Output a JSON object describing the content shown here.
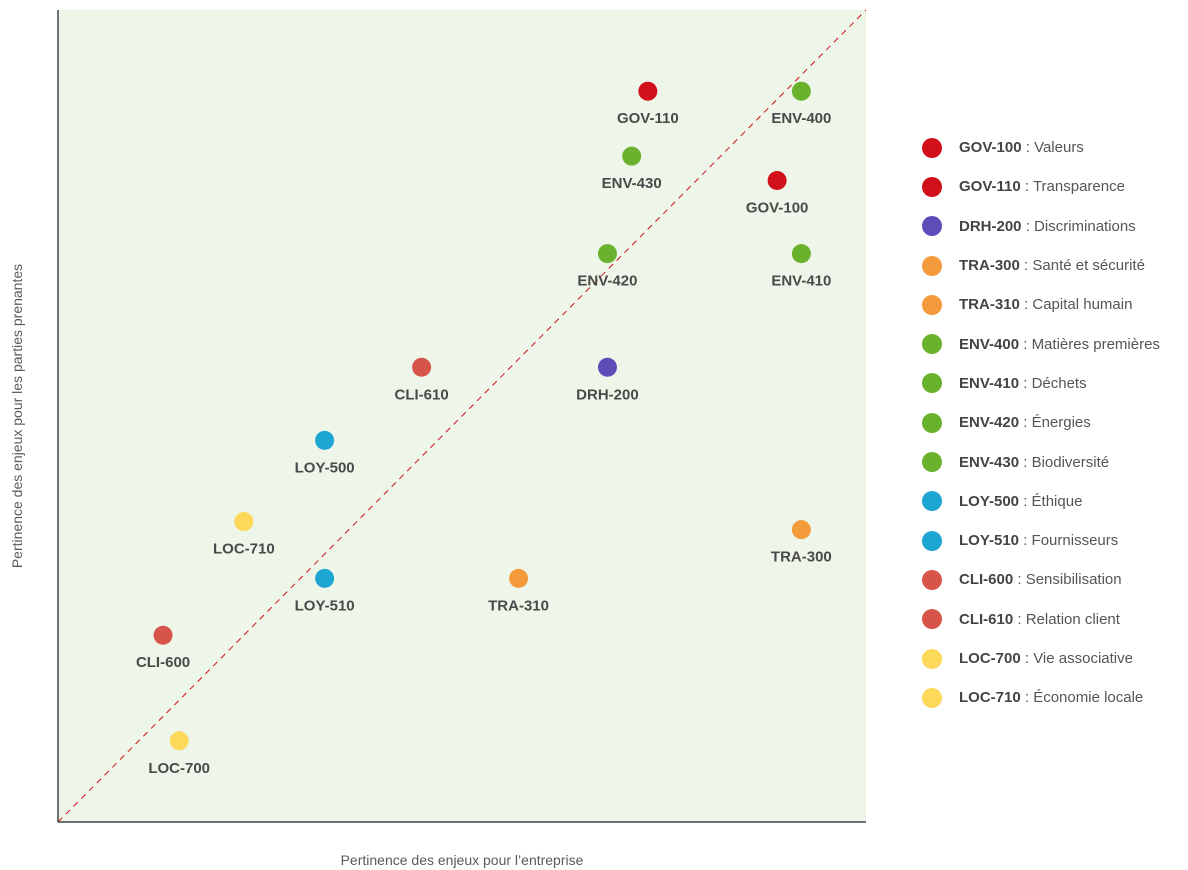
{
  "chart_data": {
    "type": "scatter",
    "xlabel": "Pertinence des enjeux pour l’entreprise",
    "ylabel": "Pertinence des enjeux pour les parties prenantes",
    "xlim": [
      0,
      10
    ],
    "ylim": [
      0,
      10
    ],
    "diagonal": true,
    "grid": false,
    "background": "#eef5e9",
    "legend_position": "right",
    "points": [
      {
        "label": "GOV-110",
        "x": 7.3,
        "y": 9.0,
        "color": "#d0101a"
      },
      {
        "label": "ENV-400",
        "x": 9.2,
        "y": 9.0,
        "color": "#6ab22e"
      },
      {
        "label": "ENV-430",
        "x": 7.1,
        "y": 8.2,
        "color": "#6ab22e"
      },
      {
        "label": "GOV-100",
        "x": 8.9,
        "y": 7.9,
        "color": "#d0101a"
      },
      {
        "label": "ENV-420",
        "x": 6.8,
        "y": 7.0,
        "color": "#6ab22e"
      },
      {
        "label": "ENV-410",
        "x": 9.2,
        "y": 7.0,
        "color": "#6ab22e"
      },
      {
        "label": "CLI-610",
        "x": 4.5,
        "y": 5.6,
        "color": "#d6544a"
      },
      {
        "label": "DRH-200",
        "x": 6.8,
        "y": 5.6,
        "color": "#5e4cb8"
      },
      {
        "label": "LOY-500",
        "x": 3.3,
        "y": 4.7,
        "color": "#1ea6d2"
      },
      {
        "label": "LOC-710",
        "x": 2.3,
        "y": 3.7,
        "color": "#fcd95a"
      },
      {
        "label": "TRA-300",
        "x": 9.2,
        "y": 3.6,
        "color": "#f39a3a"
      },
      {
        "label": "LOY-510",
        "x": 3.3,
        "y": 3.0,
        "color": "#1ea6d2"
      },
      {
        "label": "TRA-310",
        "x": 5.7,
        "y": 3.0,
        "color": "#f39a3a"
      },
      {
        "label": "CLI-600",
        "x": 1.3,
        "y": 2.3,
        "color": "#d6544a"
      },
      {
        "label": "LOC-700",
        "x": 1.5,
        "y": 1.0,
        "color": "#fcd95a"
      }
    ],
    "legend": [
      {
        "code": "GOV-100",
        "sep": " : ",
        "name": "Valeurs",
        "color": "#d0101a"
      },
      {
        "code": "GOV-110",
        "sep": " : ",
        "name": "Transparence",
        "color": "#d0101a"
      },
      {
        "code": "DRH-200",
        "sep": " : ",
        "name": "Discriminations",
        "color": "#5e4cb8"
      },
      {
        "code": "TRA-300",
        "sep": " : ",
        "name": "Santé et sécurité",
        "color": "#f39a3a"
      },
      {
        "code": "TRA-310",
        "sep": " : ",
        "name": "Capital humain",
        "color": "#f39a3a"
      },
      {
        "code": "ENV-400",
        "sep": " : ",
        "name": "Matières premières",
        "color": "#6ab22e"
      },
      {
        "code": "ENV-410",
        "sep": " : ",
        "name": "Déchets",
        "color": "#6ab22e"
      },
      {
        "code": "ENV-420",
        "sep": " : ",
        "name": "Énergies",
        "color": "#6ab22e"
      },
      {
        "code": "ENV-430",
        "sep": " : ",
        "name": "Biodiversité",
        "color": "#6ab22e"
      },
      {
        "code": "LOY-500",
        "sep": " : ",
        "name": "Éthique",
        "color": "#1ea6d2"
      },
      {
        "code": "LOY-510",
        "sep": " : ",
        "name": "Fournisseurs",
        "color": "#1ea6d2"
      },
      {
        "code": "CLI-600",
        "sep": " : ",
        "name": "Sensibilisation",
        "color": "#d6544a"
      },
      {
        "code": "CLI-610",
        "sep": " : ",
        "name": "Relation client",
        "color": "#d6544a"
      },
      {
        "code": "LOC-700",
        "sep": " : ",
        "name": "Vie associative",
        "color": "#fcd95a"
      },
      {
        "code": "LOC-710",
        "sep": " : ",
        "name": "Économie locale",
        "color": "#fcd95a"
      }
    ]
  }
}
